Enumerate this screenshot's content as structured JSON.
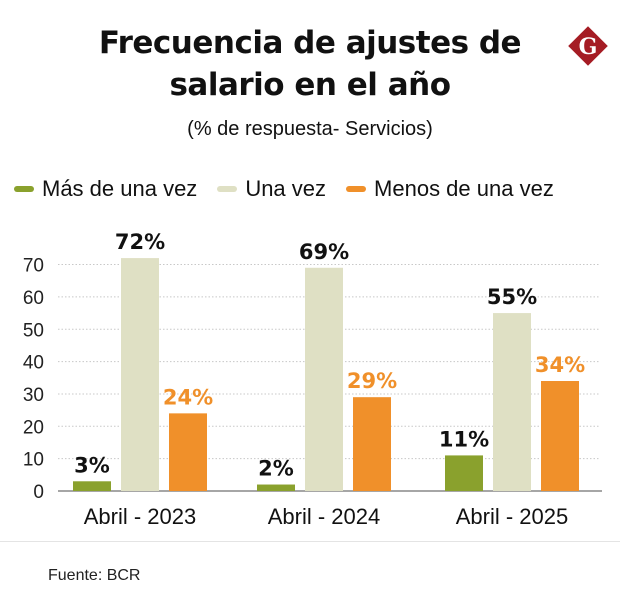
{
  "header": {
    "title_line1": "Frecuencia de ajustes de",
    "title_line2": "salario en el año",
    "subtitle": "(% de respuesta- Servicios)",
    "logo_letter": "G",
    "logo_color": "#a51c24"
  },
  "source": "Fuente: BCR",
  "chart_data": {
    "type": "bar",
    "title": "Frecuencia de ajustes de salario en el año",
    "subtitle": "(% de respuesta- Servicios)",
    "xlabel": "",
    "ylabel": "",
    "categories": [
      "Abril - 2023",
      "Abril - 2024",
      "Abril - 2025"
    ],
    "series": [
      {
        "name": "Más de una vez",
        "color": "#8aa12d",
        "values": [
          3,
          2,
          11
        ],
        "labels": [
          "3%",
          "2%",
          "11%"
        ],
        "label_color": "#111111"
      },
      {
        "name": "Una vez",
        "color": "#dfe0c4",
        "values": [
          72,
          69,
          55
        ],
        "labels": [
          "72%",
          "69%",
          "55%"
        ],
        "label_color": "#111111"
      },
      {
        "name": "Menos de una vez",
        "color": "#f0902a",
        "values": [
          24,
          29,
          34
        ],
        "labels": [
          "24%",
          "29%",
          "34%"
        ],
        "label_color": "#f0902a"
      }
    ],
    "yticks": [
      0,
      10,
      20,
      30,
      40,
      50,
      60,
      70
    ],
    "ylim": [
      0,
      75
    ],
    "grid": true,
    "legend": "top"
  }
}
